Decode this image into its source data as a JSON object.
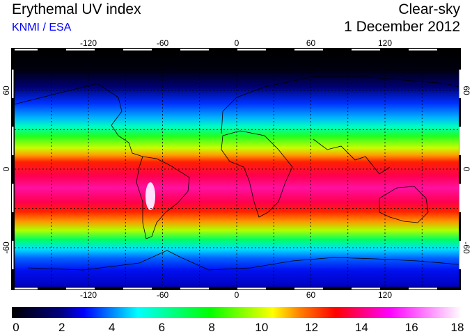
{
  "header": {
    "title": "Erythemal UV index",
    "credit": "KNMI / ESA",
    "mode": "Clear-sky",
    "date": "1 December 2012"
  },
  "map": {
    "lon_ticks": [
      "-120",
      "-60",
      "0",
      "60",
      "120"
    ],
    "lat_ticks": [
      "60",
      "0",
      "-60"
    ],
    "grid": "dashed",
    "projection": "equirectangular"
  },
  "colorbar": {
    "labels": [
      "0",
      "2",
      "4",
      "6",
      "8",
      "10",
      "12",
      "14",
      "16",
      "18"
    ],
    "range": [
      0,
      18
    ],
    "colors": [
      "#000000",
      "#000080",
      "#0000ff",
      "#00ffff",
      "#00ff00",
      "#ffff00",
      "#ff8000",
      "#ff0000",
      "#ff00ff",
      "#ffffff"
    ]
  }
}
